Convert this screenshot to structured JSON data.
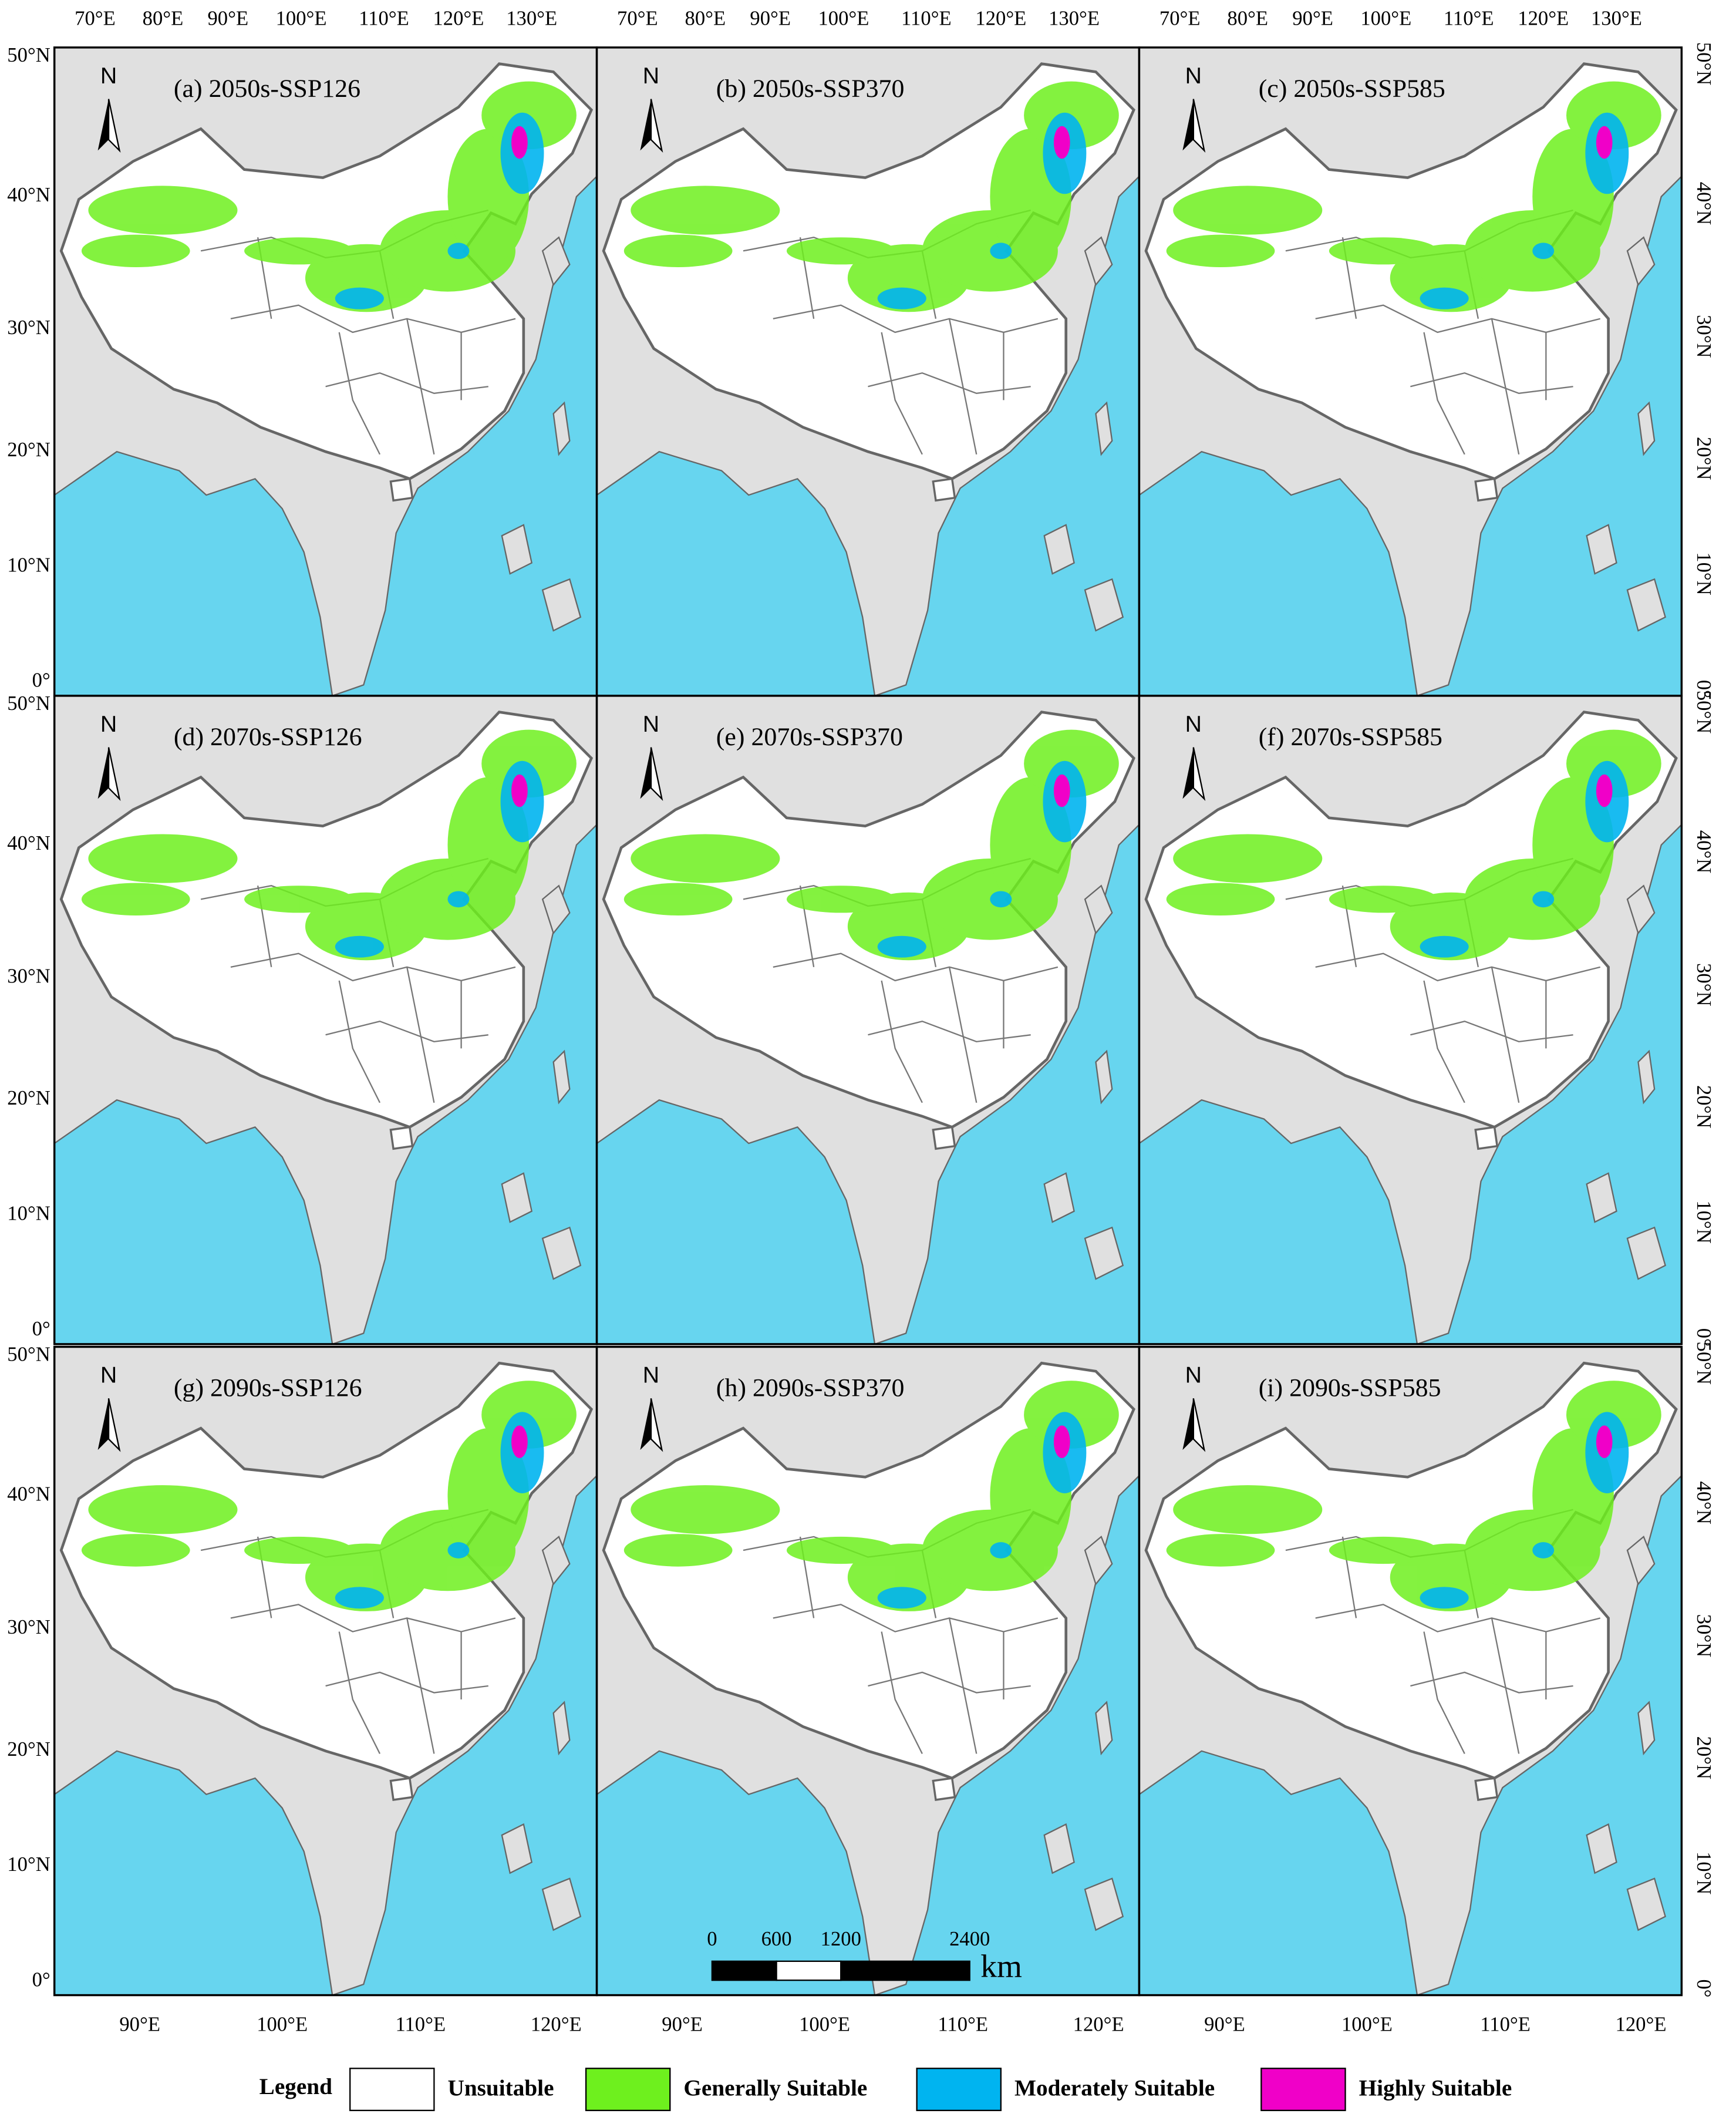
{
  "panels": [
    {
      "title": "(a)  2050s-SSP126"
    },
    {
      "title": "(b)  2050s-SSP370"
    },
    {
      "title": "(c)  2050s-SSP585"
    },
    {
      "title": "(d)  2070s-SSP126"
    },
    {
      "title": "(e)  2070s-SSP370"
    },
    {
      "title": "(f)  2070s-SSP585"
    },
    {
      "title": "(g)  2090s-SSP126"
    },
    {
      "title": "(h)  2090s-SSP370"
    },
    {
      "title": "(i)  2090s-SSP585"
    }
  ],
  "north_label": "N",
  "axes": {
    "top": [
      "70°E",
      "80°E",
      "90°E",
      "100°E",
      "110°E",
      "120°E",
      "130°E"
    ],
    "left": [
      "50°N",
      "40°N",
      "30°N",
      "20°N",
      "10°N",
      "0°"
    ],
    "right": [
      "50°N",
      "40°N",
      "30°N",
      "20°N",
      "10°N",
      "0°"
    ],
    "bottom": [
      "90°E",
      "100°E",
      "110°E",
      "120°E"
    ]
  },
  "legend": {
    "title": "Legend",
    "items": [
      {
        "label": "Unsuitable",
        "color": "#ffffff"
      },
      {
        "label": "Generally Suitable",
        "color": "#6ef01e"
      },
      {
        "label": "Moderately Suitable",
        "color": "#00b4f0"
      },
      {
        "label": "Highly Suitable",
        "color": "#f000c8"
      }
    ]
  },
  "scale_bar": {
    "labels": [
      0,
      600,
      1200,
      2400
    ],
    "unit": "km"
  }
}
